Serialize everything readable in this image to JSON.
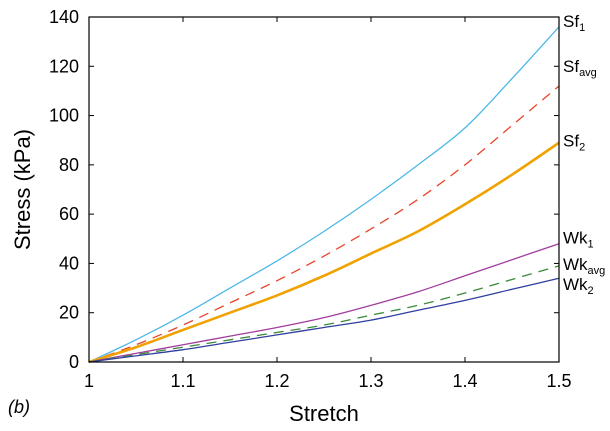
{
  "chart_data": {
    "type": "line",
    "panel_label": "(b)",
    "xlabel": "Stretch",
    "ylabel": "Stress (kPa)",
    "xlim": [
      1,
      1.5
    ],
    "ylim": [
      0,
      140
    ],
    "x_ticks": [
      1,
      1.1,
      1.2,
      1.3,
      1.4,
      1.5
    ],
    "x_tick_labels": [
      "1",
      "1.1",
      "1.2",
      "1.3",
      "1.4",
      "1.5"
    ],
    "y_ticks": [
      0,
      20,
      40,
      60,
      80,
      100,
      120,
      140
    ],
    "y_tick_labels": [
      "0",
      "20",
      "40",
      "60",
      "80",
      "100",
      "120",
      "140"
    ],
    "grid": false,
    "series": [
      {
        "name": "Sf1",
        "label_main": "Sf",
        "label_sub": "1",
        "color": "#4db8e6",
        "style": "solid",
        "weight": "thin",
        "x": [
          1.0,
          1.05,
          1.1,
          1.15,
          1.2,
          1.25,
          1.3,
          1.35,
          1.4,
          1.45,
          1.5
        ],
        "values": [
          0,
          9,
          19,
          30,
          41,
          53,
          66,
          80,
          95,
          115,
          136
        ]
      },
      {
        "name": "Sfavg",
        "label_main": "Sf",
        "label_sub": "avg",
        "color": "#e8442a",
        "style": "dashed",
        "weight": "thin",
        "x": [
          1.0,
          1.05,
          1.1,
          1.15,
          1.2,
          1.25,
          1.3,
          1.35,
          1.4,
          1.45,
          1.5
        ],
        "values": [
          0,
          7,
          15,
          24,
          33,
          43,
          54,
          66,
          80,
          96,
          112
        ]
      },
      {
        "name": "Sf2",
        "label_main": "Sf",
        "label_sub": "2",
        "color": "#f0a202",
        "style": "solid",
        "weight": "thick",
        "x": [
          1.0,
          1.05,
          1.1,
          1.15,
          1.2,
          1.25,
          1.3,
          1.35,
          1.4,
          1.45,
          1.5
        ],
        "values": [
          0,
          6,
          13,
          20,
          27,
          35,
          44,
          53,
          64,
          76,
          89
        ]
      },
      {
        "name": "Wk1",
        "label_main": "Wk",
        "label_sub": "1",
        "color": "#a23d9e",
        "style": "solid",
        "weight": "thin",
        "x": [
          1.0,
          1.05,
          1.1,
          1.15,
          1.2,
          1.25,
          1.3,
          1.35,
          1.4,
          1.45,
          1.5
        ],
        "values": [
          0,
          3.5,
          7,
          10.5,
          14,
          18,
          23,
          28.5,
          35,
          41.5,
          48
        ]
      },
      {
        "name": "Wkavg",
        "label_main": "Wk",
        "label_sub": "avg",
        "color": "#3a8a3a",
        "style": "dashed",
        "weight": "thin",
        "x": [
          1.0,
          1.05,
          1.1,
          1.15,
          1.2,
          1.25,
          1.3,
          1.35,
          1.4,
          1.45,
          1.5
        ],
        "values": [
          0,
          3,
          6,
          9,
          12,
          15,
          19,
          23,
          28,
          33.5,
          39
        ]
      },
      {
        "name": "Wk2",
        "label_main": "Wk",
        "label_sub": "2",
        "color": "#2f3f9e",
        "style": "solid",
        "weight": "thin",
        "x": [
          1.0,
          1.05,
          1.1,
          1.15,
          1.2,
          1.25,
          1.3,
          1.35,
          1.4,
          1.45,
          1.5
        ],
        "values": [
          0,
          2.5,
          5,
          8,
          11,
          14,
          17,
          21,
          25,
          29.5,
          34
        ]
      }
    ]
  }
}
